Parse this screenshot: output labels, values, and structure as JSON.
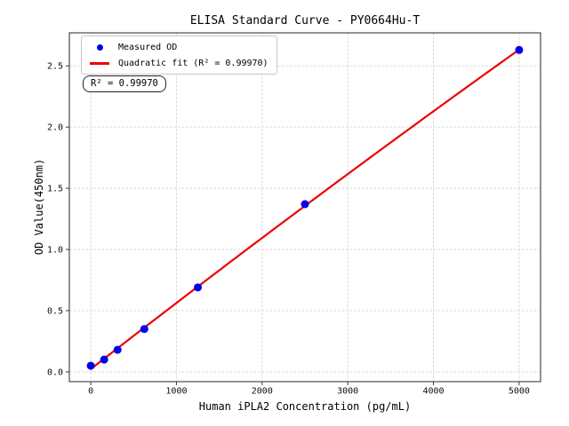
{
  "figure": {
    "title": "ELISA Standard Curve - PY0664Hu-T",
    "xlabel": "Human iPLA2 Concentration (pg/mL)",
    "ylabel": "OD Value(450nm)",
    "legend": {
      "measured_label": "Measured OD",
      "fit_label": "Quadratic fit (R² = 0.99970)"
    },
    "annotation": "R² = 0.99970"
  },
  "chart_data": {
    "type": "scatter",
    "title": "ELISA Standard Curve - PY0664Hu-T",
    "xlabel": "Human iPLA2 Concentration (pg/mL)",
    "ylabel": "OD Value(450nm)",
    "series": [
      {
        "name": "Measured OD",
        "type": "scatter",
        "color": "#0000ee",
        "x": [
          0,
          156.25,
          312.5,
          625,
          1250,
          2500,
          5000
        ],
        "y": [
          0.05,
          0.1,
          0.18,
          0.35,
          0.69,
          1.37,
          2.63
        ]
      },
      {
        "name": "Quadratic fit (R² = 0.99970)",
        "type": "line",
        "fit": "quadratic",
        "r_squared": 0.9997,
        "color": "#ee0000"
      }
    ],
    "xlim": [
      -250,
      5250
    ],
    "ylim": [
      -0.08,
      2.77
    ],
    "xticks": [
      0,
      1000,
      2000,
      3000,
      4000,
      5000
    ],
    "xtick_labels": [
      "0",
      "1000",
      "2000",
      "3000",
      "4000",
      "5000"
    ],
    "yticks": [
      0,
      0.5,
      1.0,
      1.5,
      2.0,
      2.5
    ],
    "ytick_labels": [
      "0.0",
      "0.5",
      "1.0",
      "1.5",
      "2.0",
      "2.5"
    ],
    "grid": true,
    "legend_position": "upper left",
    "annotation": "R² = 0.99970",
    "colors": {
      "marker": "#0000ee",
      "fit_line": "#ee0000",
      "grid": "#d9d9d9",
      "spine": "#3a3a3a",
      "text": "#000000",
      "background": "#ffffff"
    }
  }
}
